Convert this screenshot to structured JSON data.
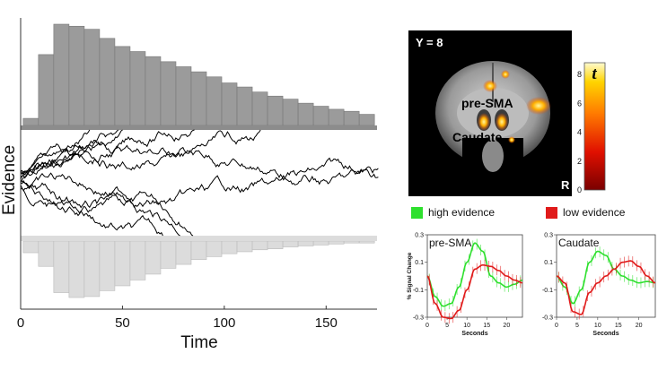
{
  "left_chart": {
    "ylabel": "Evidence",
    "xlabel": "Time",
    "xticks": [
      "0",
      "50",
      "100",
      "150"
    ],
    "colors": {
      "upper_hist": "#9b9b9b",
      "lower_hist": "#dcdcdc",
      "bound": "#8c8c8c",
      "paths": "#000000"
    }
  },
  "brain": {
    "slice_label": "Y = 8",
    "side_label": "R",
    "region1": "pre-SMA",
    "region2": "Caudate",
    "colorbar_label": "t",
    "colorbar_ticks": [
      "0",
      "2",
      "4",
      "6",
      "8"
    ]
  },
  "legend": {
    "high_label": "high evidence",
    "high_color": "#2ee02e",
    "low_label": "low evidence",
    "low_color": "#e01a1a"
  },
  "chart_data": [
    {
      "type": "bar",
      "title": "",
      "xlabel": "Time",
      "ylabel": "Evidence",
      "x": [
        5,
        12.5,
        20,
        27.5,
        35,
        42.5,
        50,
        57.5,
        65,
        72.5,
        80,
        87.5,
        95,
        102.5,
        110,
        117.5,
        125,
        132.5,
        140,
        147.5,
        155,
        162.5,
        170
      ],
      "series": [
        {
          "name": "",
          "values": [
            7,
            70,
            100,
            98,
            95,
            86,
            78,
            73,
            68,
            63,
            58,
            53,
            48,
            42,
            38,
            33,
            29,
            26,
            22,
            19,
            16,
            14,
            11
          ]
        },
        {
          "name": "",
          "values": [
            12,
            26,
            53,
            58,
            57,
            51,
            46,
            40,
            34,
            28,
            24,
            19,
            16,
            13,
            11,
            9,
            8,
            6,
            5,
            4,
            3,
            2,
            2
          ]
        }
      ],
      "xlim": [
        0,
        175
      ]
    },
    {
      "type": "line",
      "title": "pre-SMA",
      "xlabel": "Seconds",
      "ylabel": "% Signal Change",
      "x": [
        0,
        2,
        4,
        6,
        8,
        10,
        12,
        14,
        16,
        18,
        20,
        22,
        24
      ],
      "series": [
        {
          "name": "high evidence",
          "values": [
            0.0,
            -0.15,
            -0.22,
            -0.2,
            -0.08,
            0.1,
            0.24,
            0.18,
            0.0,
            -0.05,
            -0.08,
            -0.06,
            -0.03
          ]
        },
        {
          "name": "low evidence",
          "values": [
            0.0,
            -0.2,
            -0.3,
            -0.31,
            -0.25,
            -0.1,
            0.05,
            0.08,
            0.07,
            0.04,
            0.0,
            -0.03,
            -0.05
          ]
        }
      ],
      "xticks": [
        0,
        5,
        10,
        15,
        20
      ],
      "yticks": [
        0.3,
        0.1,
        -0.1,
        -0.3
      ],
      "ylim": [
        -0.3,
        0.3
      ]
    },
    {
      "type": "line",
      "title": "Caudate",
      "xlabel": "Seconds",
      "ylabel": "",
      "x": [
        0,
        2,
        4,
        6,
        8,
        10,
        12,
        14,
        16,
        18,
        20,
        22,
        24
      ],
      "series": [
        {
          "name": "high evidence",
          "values": [
            0.0,
            -0.08,
            -0.2,
            -0.1,
            0.1,
            0.18,
            0.15,
            0.05,
            0.0,
            -0.03,
            -0.05,
            -0.04,
            -0.05
          ]
        },
        {
          "name": "low evidence",
          "values": [
            0.0,
            -0.05,
            -0.26,
            -0.28,
            -0.12,
            -0.05,
            0.0,
            0.05,
            0.1,
            0.11,
            0.07,
            0.0,
            -0.05
          ]
        }
      ],
      "xticks": [
        0,
        5,
        10,
        15,
        20
      ],
      "yticks": [
        0.3,
        0.1,
        -0.1,
        -0.3
      ],
      "ylim": [
        -0.3,
        0.3
      ]
    }
  ]
}
